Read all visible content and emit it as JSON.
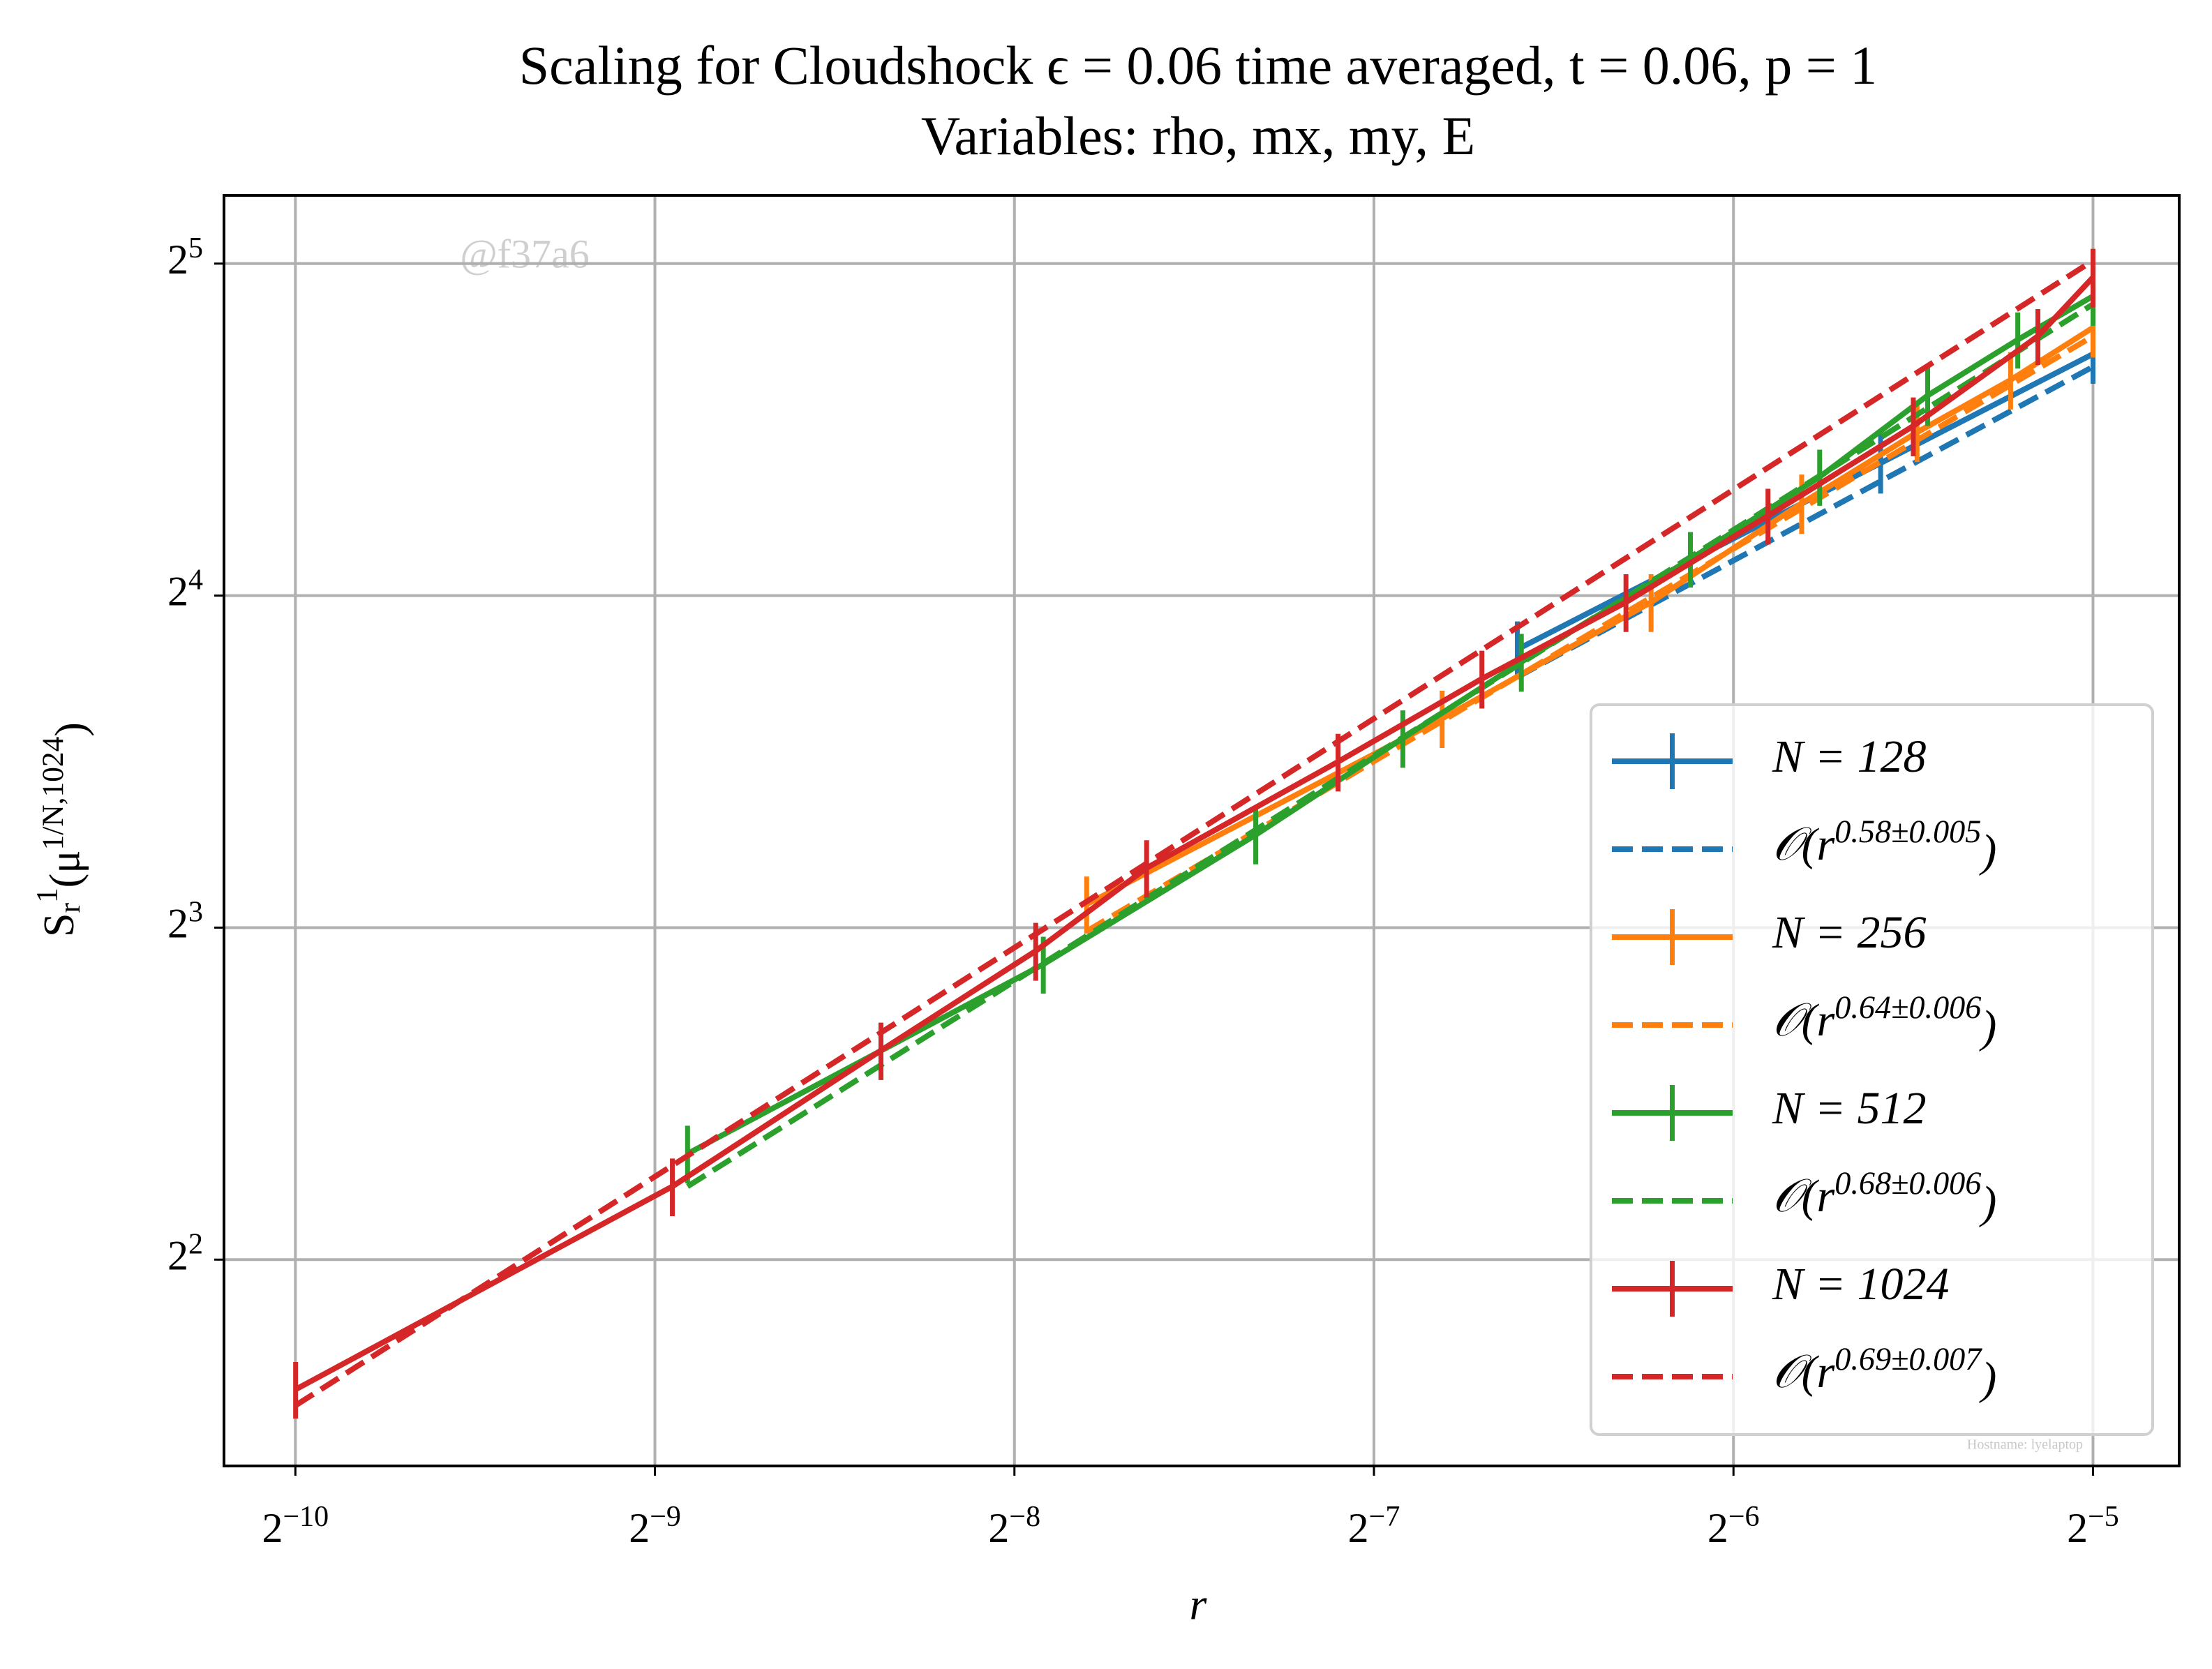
{
  "chart_data": {
    "type": "line",
    "title": "Scaling for Cloudshock ϵ = 0.06 time averaged, t = 0.06, p = 1",
    "subtitle": "Variables: rho, mx, my, E",
    "xlabel": "r",
    "ylabel": "S_{r}^{1}(μ^{1/N,1024})",
    "annotations": [
      "@f37a6",
      "Hostname: lyelaptop"
    ],
    "xscale": "log",
    "yscale": "log",
    "log_base": 2,
    "grid": true,
    "legend": "lower right",
    "xlim": [
      0.000851,
      0.0369
    ],
    "xticks": [
      {
        "value": 0.0009765625,
        "label": "2^{−10}"
      },
      {
        "value": 0.001953125,
        "label": "2^{−9}"
      },
      {
        "value": 0.00390625,
        "label": "2^{−8}"
      },
      {
        "value": 0.0078125,
        "label": "2^{−7}"
      },
      {
        "value": 0.015625,
        "label": "2^{−6}"
      },
      {
        "value": 0.03125,
        "label": "2^{−5}"
      }
    ],
    "ylim": [
      2.6,
      36.9
    ],
    "yticks": [
      {
        "value": 4,
        "label": "2^{2}"
      },
      {
        "value": 8,
        "label": "2^{3}"
      },
      {
        "value": 16,
        "label": "2^{4}"
      },
      {
        "value": 32,
        "label": "2^{5}"
      }
    ],
    "series": [
      {
        "name": "N = 128",
        "color": "#1f77b4",
        "linestyle": "solid",
        "x": [
          0.0103,
          0.02075,
          0.03125
        ],
        "values": [
          14.3,
          21.1,
          26.5
        ],
        "errors": [
          0.86,
          1.3,
          1.6
        ]
      },
      {
        "name": "𝒪(r^{0.58±0.005})",
        "color": "#1f77b4",
        "linestyle": "dashed",
        "x": [
          0.0103,
          0.03125
        ],
        "values": [
          13.5,
          25.8
        ]
      },
      {
        "name": "N = 256",
        "color": "#ff7f0e",
        "linestyle": "solid",
        "x": [
          0.00449,
          0.00891,
          0.01333,
          0.01782,
          0.02226,
          0.02666,
          0.03125
        ],
        "values": [
          8.4,
          12.38,
          15.78,
          19.4,
          22.5,
          25.1,
          28.0
        ],
        "errors": [
          0.5,
          0.74,
          0.95,
          1.2,
          1.35,
          1.5,
          1.7
        ]
      },
      {
        "name": "𝒪(r^{0.64±0.006})",
        "color": "#ff7f0e",
        "linestyle": "dashed",
        "x": [
          0.00449,
          0.03125
        ],
        "values": [
          7.94,
          27.5
        ]
      },
      {
        "name": "N = 512",
        "color": "#2ca02c",
        "linestyle": "solid",
        "x": [
          0.00208,
          0.00413,
          0.00622,
          0.00826,
          0.01038,
          0.01438,
          0.01845,
          0.02272,
          0.02703,
          0.03125
        ],
        "values": [
          4.99,
          7.41,
          9.71,
          11.88,
          13.93,
          17.27,
          20.5,
          24.3,
          27.3,
          29.9
        ],
        "errors": [
          0.3,
          0.44,
          0.58,
          0.71,
          0.84,
          1.0,
          1.2,
          1.5,
          1.6,
          1.8
        ]
      },
      {
        "name": "𝒪(r^{0.68±0.006})",
        "color": "#2ca02c",
        "linestyle": "dashed",
        "x": [
          0.00208,
          0.03125
        ],
        "values": [
          4.66,
          29.4
        ]
      },
      {
        "name": "N = 1024",
        "color": "#d62728",
        "linestyle": "solid",
        "x": [
          0.000977,
          0.00202,
          0.00302,
          0.00407,
          0.00504,
          0.00729,
          0.00962,
          0.0127,
          0.0167,
          0.0221,
          0.0281,
          0.03125
        ],
        "values": [
          3.05,
          4.66,
          6.19,
          7.62,
          9.06,
          11.31,
          13.45,
          15.78,
          18.9,
          22.8,
          27.5,
          31.1
        ],
        "errors": [
          0.18,
          0.28,
          0.37,
          0.46,
          0.54,
          0.68,
          0.81,
          0.95,
          1.1,
          1.4,
          1.6,
          1.9
        ]
      },
      {
        "name": "𝒪(r^{0.69±0.007})",
        "color": "#d62728",
        "linestyle": "dashed",
        "x": [
          0.000977,
          0.03125
        ],
        "values": [
          2.95,
          32.2
        ]
      }
    ]
  }
}
